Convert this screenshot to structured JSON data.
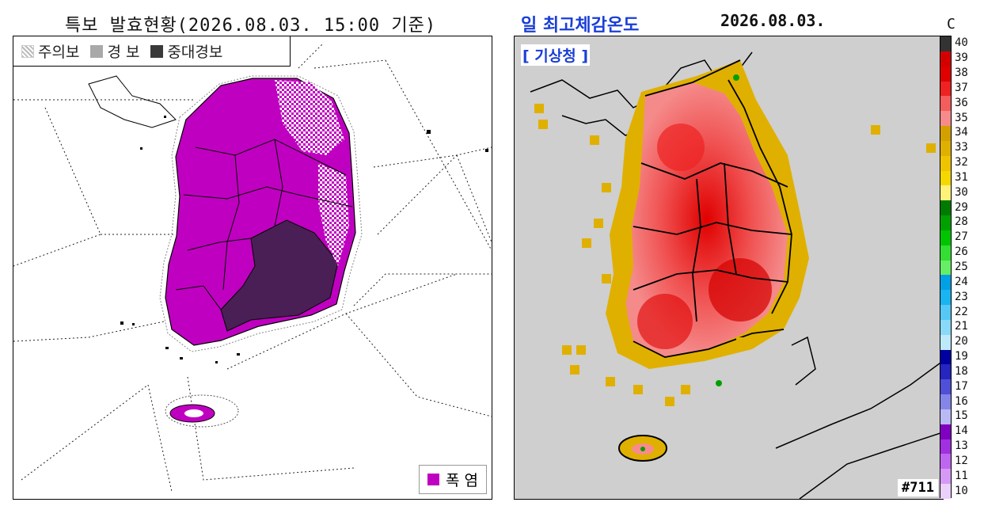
{
  "left": {
    "title": "특보 발효현황(2026.08.03. 15:00 기준)",
    "legend": {
      "advisory": "주의보",
      "warning": "경 보",
      "severe": "중대경보"
    },
    "heat_legend": "폭 염",
    "colors": {
      "heatwave": "#c000c0",
      "severe": "#4a1f56",
      "advisory_pattern": "#ffffff"
    }
  },
  "right": {
    "title": "일 최고체감온도",
    "date": "2026.08.03.",
    "unit": "C",
    "source_label": "[ 기상청 ]",
    "map_code": "#711",
    "colorbar": {
      "ticks": [
        40,
        39,
        38,
        37,
        36,
        35,
        34,
        33,
        32,
        31,
        30,
        29,
        28,
        27,
        26,
        25,
        24,
        23,
        22,
        21,
        20,
        19,
        18,
        17,
        16,
        15,
        14,
        13,
        12,
        11,
        10
      ],
      "colors": {
        "40": "#333333",
        "39": "#d40000",
        "38": "#e00000",
        "37": "#ee2222",
        "36": "#f55c5c",
        "35": "#f78b8b",
        "34": "#d4a000",
        "33": "#e0b000",
        "32": "#eec400",
        "31": "#f5d800",
        "30": "#fff27a",
        "29": "#007a00",
        "28": "#00a000",
        "27": "#00c400",
        "26": "#33dd33",
        "25": "#66ee66",
        "24": "#00a0e6",
        "23": "#1ab4f0",
        "22": "#55c8f5",
        "21": "#88daf8",
        "20": "#bde9fb",
        "19": "#0000a0",
        "18": "#2525c0",
        "17": "#4f4fd8",
        "16": "#8585e8",
        "15": "#b9b9f5",
        "14": "#8000c0",
        "13": "#a030e0",
        "12": "#bf66f0",
        "11": "#d699f5",
        "10": "#ead0fa"
      }
    }
  }
}
